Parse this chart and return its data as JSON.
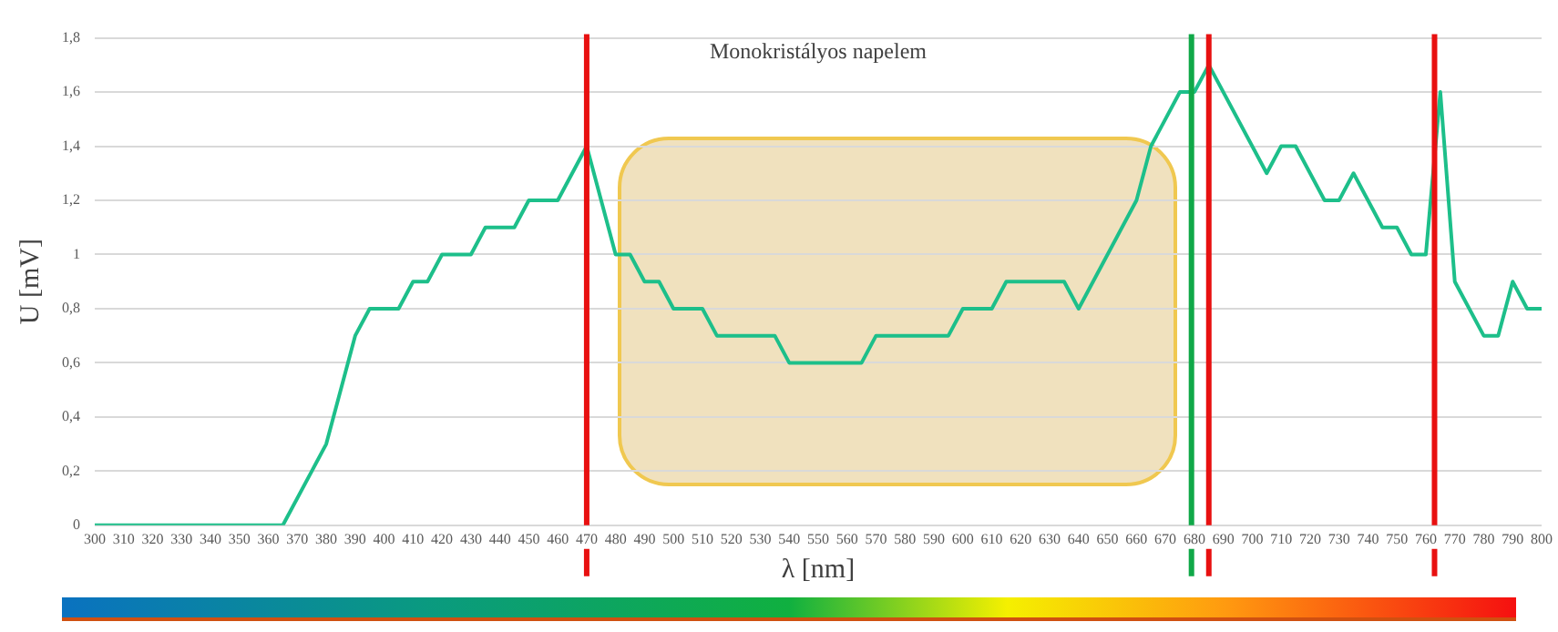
{
  "chart_data": {
    "type": "line",
    "title": "Monokristályos napelem",
    "xlabel": "λ [nm]",
    "ylabel": "U [mV]",
    "series": [
      {
        "color": "#1dbf8a",
        "x": [
          300,
          365,
          375,
          380,
          390,
          395,
          400,
          405,
          410,
          415,
          420,
          425,
          430,
          435,
          440,
          445,
          450,
          455,
          460,
          470,
          480,
          485,
          490,
          495,
          500,
          505,
          510,
          515,
          520,
          525,
          530,
          535,
          540,
          545,
          550,
          555,
          560,
          565,
          570,
          575,
          580,
          585,
          590,
          595,
          600,
          605,
          610,
          615,
          620,
          625,
          630,
          635,
          640,
          660,
          665,
          675,
          680,
          685,
          705,
          710,
          715,
          725,
          730,
          735,
          745,
          750,
          755,
          760,
          765,
          770,
          780,
          785,
          790,
          795,
          800
        ],
        "values": [
          0,
          0,
          0.2,
          0.3,
          0.7,
          0.8,
          0.8,
          0.8,
          0.9,
          0.9,
          1.0,
          1.0,
          1.0,
          1.1,
          1.1,
          1.1,
          1.2,
          1.2,
          1.2,
          1.4,
          1.0,
          1.0,
          0.9,
          0.9,
          0.8,
          0.8,
          0.8,
          0.7,
          0.7,
          0.7,
          0.7,
          0.7,
          0.6,
          0.6,
          0.6,
          0.6,
          0.6,
          0.6,
          0.7,
          0.7,
          0.7,
          0.7,
          0.7,
          0.7,
          0.8,
          0.8,
          0.8,
          0.9,
          0.9,
          0.9,
          0.9,
          0.9,
          0.8,
          1.2,
          1.4,
          1.6,
          1.6,
          1.7,
          1.3,
          1.4,
          1.4,
          1.2,
          1.2,
          1.3,
          1.1,
          1.1,
          1.0,
          1.0,
          1.6,
          0.9,
          0.7,
          0.7,
          0.9,
          0.8,
          0.8
        ]
      }
    ],
    "xlim": [
      300,
      800
    ],
    "xticks": [
      300,
      310,
      320,
      330,
      340,
      350,
      360,
      370,
      380,
      390,
      400,
      410,
      420,
      430,
      440,
      450,
      460,
      470,
      480,
      490,
      500,
      510,
      520,
      530,
      540,
      550,
      560,
      570,
      580,
      590,
      600,
      610,
      620,
      630,
      640,
      650,
      660,
      670,
      680,
      690,
      700,
      710,
      720,
      730,
      740,
      750,
      760,
      770,
      780,
      790,
      800
    ],
    "ylim": [
      0,
      1.8
    ],
    "yticks": [
      0,
      {
        "value": 0.2,
        "label": "0,2"
      },
      {
        "value": 0.4,
        "label": "0,4"
      },
      {
        "value": 0.6,
        "label": "0,6"
      },
      {
        "value": 0.8,
        "label": "0,8"
      },
      1,
      {
        "value": 1.2,
        "label": "1,2"
      },
      {
        "value": 1.4,
        "label": "1,4"
      },
      {
        "value": 1.6,
        "label": "1,6"
      },
      {
        "value": 1.8,
        "label": "1,8"
      }
    ],
    "grid": "y",
    "legend": false,
    "marker": "none",
    "line_style": "solid",
    "ref_lines": [
      {
        "axis": "x",
        "value": 470,
        "color": "#e81010"
      },
      {
        "axis": "x",
        "value": 679,
        "color": "#10a848"
      },
      {
        "axis": "x",
        "value": 685,
        "color": "#e81010"
      },
      {
        "axis": "x",
        "value": 763,
        "color": "#e81010"
      }
    ]
  }
}
